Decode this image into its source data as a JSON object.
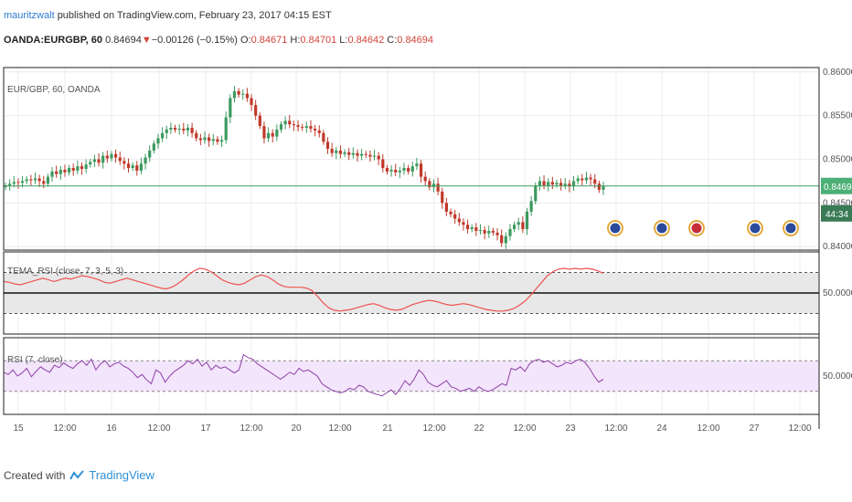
{
  "header": {
    "author": "mauritzwalt",
    "published_text": "published on TradingView.com, February 23, 2017 04:15 EST",
    "symbol": "OANDA:EURGBP, 60",
    "last": "0.84694",
    "change": "−0.00126 (−0.15%)",
    "o_label": "O:",
    "o_value": "0.84671",
    "h_label": "H:",
    "h_value": "0.84701",
    "l_label": "L:",
    "l_value": "0.84642",
    "c_label": "C:",
    "c_value": "0.84694"
  },
  "colors": {
    "up": "#3c9a5f",
    "down": "#c0392b",
    "tema": "#ef5350",
    "rsi": "#8e3fa8",
    "rsi_band": "#f3e5fb",
    "tema_band": "#e8e8e8",
    "price_line": "#3c9a5f",
    "price_tag": "#4caf75"
  },
  "chart_data": [
    {
      "type": "candlestick",
      "title": "EUR/GBP, 60, OANDA",
      "x_ticks": [
        "15",
        "12:00",
        "16",
        "12:00",
        "17",
        "12:00",
        "20",
        "12:00",
        "21",
        "12:00",
        "22",
        "12:00",
        "23",
        "12:00",
        "24",
        "12:00",
        "27",
        "12:00"
      ],
      "y_ticks": [
        "0.86000",
        "0.85500",
        "0.85000",
        "0.84500",
        "0.84000"
      ],
      "ylim": [
        0.8396,
        0.8605
      ],
      "last_price": "0.84694",
      "countdown": "44:34",
      "closes": [
        0.847,
        0.8472,
        0.8474,
        0.8473,
        0.8475,
        0.8477,
        0.8476,
        0.8478,
        0.8475,
        0.8472,
        0.848,
        0.8486,
        0.8483,
        0.8488,
        0.8485,
        0.849,
        0.8487,
        0.8492,
        0.8489,
        0.8494,
        0.8497,
        0.85,
        0.8496,
        0.8504,
        0.8501,
        0.8506,
        0.8502,
        0.8498,
        0.8495,
        0.849,
        0.8493,
        0.8487,
        0.8495,
        0.8502,
        0.851,
        0.8518,
        0.8524,
        0.853,
        0.8534,
        0.8536,
        0.8534,
        0.8535,
        0.8533,
        0.8536,
        0.853,
        0.8524,
        0.8522,
        0.8525,
        0.8521,
        0.8523,
        0.852,
        0.8522,
        0.8548,
        0.857,
        0.8578,
        0.8574,
        0.8575,
        0.857,
        0.8562,
        0.855,
        0.8538,
        0.8524,
        0.853,
        0.8526,
        0.8534,
        0.854,
        0.8544,
        0.854,
        0.8539,
        0.8537,
        0.8536,
        0.8538,
        0.8535,
        0.8533,
        0.853,
        0.852,
        0.8512,
        0.8507,
        0.851,
        0.8506,
        0.8508,
        0.8505,
        0.8507,
        0.8504,
        0.8506,
        0.8505,
        0.8503,
        0.8504,
        0.85,
        0.849,
        0.8486,
        0.8488,
        0.8485,
        0.8487,
        0.849,
        0.8486,
        0.8492,
        0.8495,
        0.848,
        0.8475,
        0.8468,
        0.8472,
        0.8463,
        0.845,
        0.844,
        0.8437,
        0.8432,
        0.8428,
        0.8425,
        0.842,
        0.8422,
        0.8418,
        0.8419,
        0.8415,
        0.8418,
        0.8416,
        0.8413,
        0.8404,
        0.8412,
        0.842,
        0.8425,
        0.8428,
        0.842,
        0.844,
        0.8452,
        0.847,
        0.8475,
        0.847,
        0.8474,
        0.8471,
        0.8473,
        0.847,
        0.8472,
        0.8469,
        0.8475,
        0.8478,
        0.8476,
        0.8479,
        0.8477,
        0.8472,
        0.8465,
        0.8469
      ],
      "hourly_interval": "60",
      "source": "OANDA"
    },
    {
      "type": "line",
      "title": "TEMA_RSI (close, 7, 3, 5, 3)",
      "y_ticks": [
        "50.0000"
      ],
      "series": [
        {
          "name": "TEMA_RSI (close, 7, 3, 5, 3)",
          "values": [
            64,
            63,
            61,
            60,
            62,
            64,
            66,
            68,
            66,
            64,
            66,
            68,
            67,
            69,
            71,
            70,
            68,
            66,
            63,
            62,
            64,
            66,
            68,
            66,
            64,
            62,
            60,
            58,
            56,
            55,
            57,
            61,
            66,
            72,
            77,
            80,
            79,
            76,
            71,
            66,
            63,
            61,
            60,
            62,
            66,
            70,
            72,
            70,
            66,
            61,
            58,
            57,
            57,
            57,
            56,
            53,
            46,
            38,
            32,
            29,
            28,
            29,
            30,
            32,
            34,
            36,
            37,
            35,
            32,
            30,
            29,
            30,
            33,
            36,
            38,
            40,
            41,
            40,
            38,
            36,
            35,
            36,
            37,
            36,
            34,
            32,
            30,
            29,
            28,
            28,
            29,
            31,
            35,
            40,
            47,
            55,
            63,
            71,
            76,
            79,
            80,
            79,
            80,
            79,
            80,
            79,
            77,
            74
          ]
        }
      ],
      "ylim": [
        0,
        100
      ]
    },
    {
      "type": "line",
      "title": "RSI (7, close)",
      "y_ticks": [
        "50.0000"
      ],
      "series": [
        {
          "name": "RSI (7, close)",
          "values": [
            55,
            52,
            58,
            50,
            54,
            60,
            49,
            56,
            62,
            58,
            55,
            64,
            61,
            67,
            63,
            60,
            66,
            70,
            64,
            72,
            58,
            66,
            70,
            62,
            66,
            68,
            63,
            60,
            55,
            48,
            52,
            45,
            40,
            58,
            54,
            42,
            50,
            56,
            60,
            64,
            70,
            66,
            72,
            63,
            68,
            58,
            64,
            60,
            62,
            58,
            54,
            58,
            78,
            74,
            72,
            66,
            62,
            58,
            54,
            50,
            46,
            50,
            55,
            52,
            60,
            56,
            58,
            54,
            50,
            40,
            36,
            32,
            30,
            28,
            30,
            34,
            32,
            38,
            36,
            30,
            28,
            26,
            24,
            28,
            32,
            26,
            34,
            44,
            38,
            46,
            58,
            52,
            42,
            38,
            36,
            40,
            44,
            36,
            34,
            30,
            32,
            34,
            30,
            36,
            32,
            30,
            32,
            36,
            40,
            38,
            60,
            58,
            62,
            56,
            66,
            70,
            72,
            68,
            70,
            66,
            62,
            64,
            68,
            66,
            70,
            72,
            68,
            60,
            50,
            42,
            46
          ]
        }
      ],
      "ylim": [
        0,
        100
      ]
    }
  ]
}
